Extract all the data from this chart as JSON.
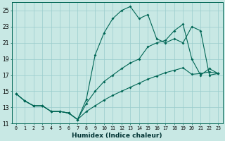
{
  "xlabel": "Humidex (Indice chaleur)",
  "bg_color": "#c8e8e4",
  "line_color": "#006655",
  "grid_color": "#99cccc",
  "xlim": [
    -0.5,
    23.5
  ],
  "ylim": [
    11,
    26
  ],
  "yticks": [
    11,
    13,
    15,
    17,
    19,
    21,
    23,
    25
  ],
  "xticks": [
    0,
    1,
    2,
    3,
    4,
    5,
    6,
    7,
    8,
    9,
    10,
    11,
    12,
    13,
    14,
    15,
    16,
    17,
    18,
    19,
    20,
    21,
    22,
    23
  ],
  "lines": [
    {
      "x": [
        0,
        1,
        2,
        3,
        4,
        5,
        6,
        7,
        8,
        9,
        10,
        11,
        12,
        13,
        14,
        15,
        16,
        17,
        18,
        19,
        20,
        21,
        22,
        23
      ],
      "y": [
        14.7,
        13.8,
        13.2,
        13.2,
        12.5,
        12.5,
        12.3,
        11.5,
        14.0,
        19.5,
        22.2,
        24.0,
        25.0,
        25.5,
        24.0,
        24.5,
        21.5,
        21.0,
        21.5,
        21.0,
        23.0,
        22.5,
        17.0,
        17.2
      ]
    },
    {
      "x": [
        0,
        1,
        2,
        3,
        4,
        5,
        6,
        7,
        8,
        9,
        10,
        11,
        12,
        13,
        14,
        15,
        16,
        17,
        18,
        19,
        20,
        21,
        22,
        23
      ],
      "y": [
        14.7,
        13.8,
        13.2,
        13.2,
        12.5,
        12.5,
        12.3,
        11.5,
        13.5,
        15.0,
        16.2,
        17.0,
        17.8,
        18.5,
        19.0,
        20.5,
        21.0,
        21.3,
        22.5,
        23.3,
        19.0,
        17.0,
        17.8,
        17.2
      ]
    },
    {
      "x": [
        0,
        1,
        2,
        3,
        4,
        5,
        6,
        7,
        8,
        9,
        10,
        11,
        12,
        13,
        14,
        15,
        16,
        17,
        18,
        19,
        20,
        21,
        22,
        23
      ],
      "y": [
        14.7,
        13.8,
        13.2,
        13.2,
        12.5,
        12.5,
        12.3,
        11.5,
        12.5,
        13.2,
        13.9,
        14.5,
        15.0,
        15.5,
        16.0,
        16.5,
        16.9,
        17.3,
        17.6,
        17.9,
        17.1,
        17.2,
        17.4,
        17.2
      ]
    }
  ]
}
